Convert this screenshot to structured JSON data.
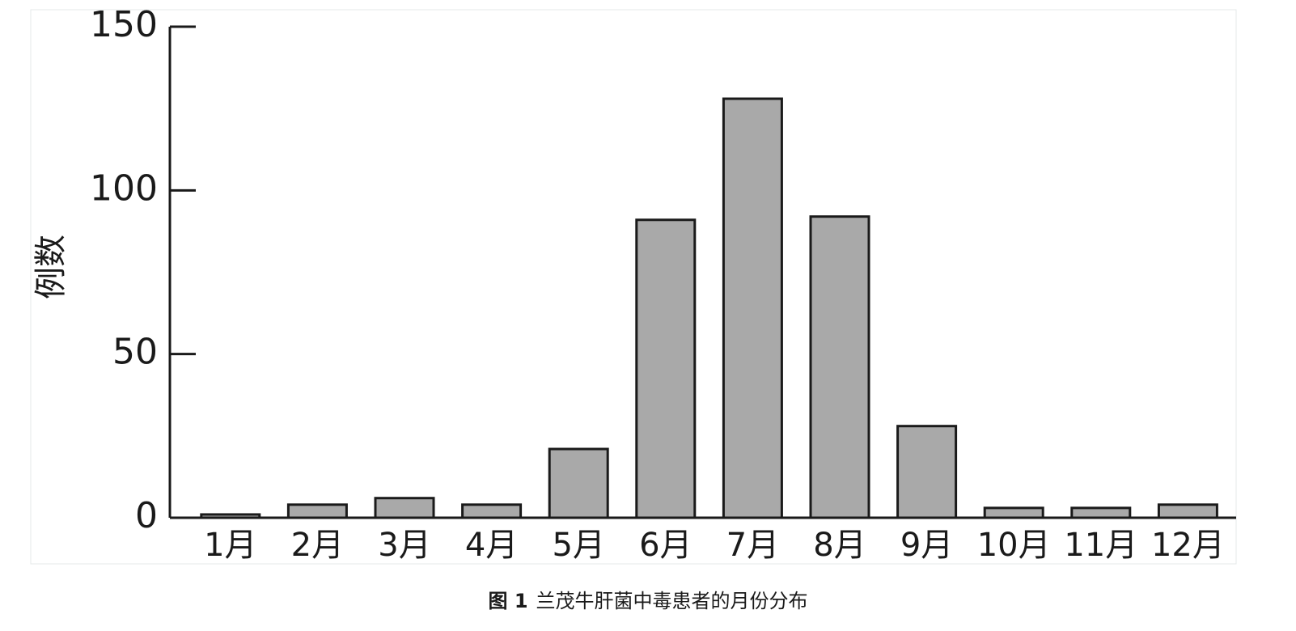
{
  "chart_data": {
    "type": "bar",
    "ylabel": "例数",
    "categories": [
      "1月",
      "2月",
      "3月",
      "4月",
      "5月",
      "6月",
      "7月",
      "8月",
      "9月",
      "10月",
      "11月",
      "12月"
    ],
    "values": [
      1,
      4,
      6,
      4,
      21,
      91,
      128,
      92,
      28,
      3,
      3,
      4
    ],
    "color": "#a9a9a9",
    "ylim": [
      0,
      150
    ],
    "yticks": [
      0,
      50,
      100,
      150
    ],
    "grid": false
  },
  "caption": {
    "label": "图 1",
    "text": "兰茂牛肝菌中毒患者的月份分布"
  }
}
